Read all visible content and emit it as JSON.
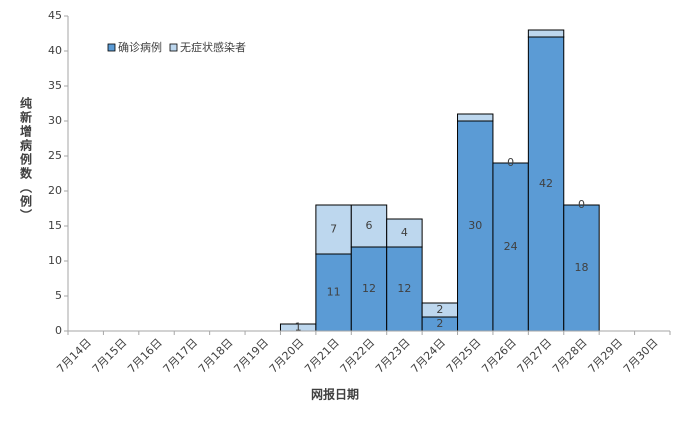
{
  "chart_data": {
    "type": "stacked_bar",
    "categories": [
      "7月14日",
      "7月15日",
      "7月16日",
      "7月17日",
      "7月18日",
      "7月19日",
      "7月20日",
      "7月21日",
      "7月22日",
      "7月23日",
      "7月24日",
      "7月25日",
      "7月26日",
      "7月27日",
      "7月28日",
      "7月29日",
      "7月30日"
    ],
    "series": [
      {
        "name": "确诊病例",
        "color": "#5b9bd5",
        "values": [
          0,
          0,
          0,
          0,
          0,
          0,
          0,
          11,
          12,
          12,
          2,
          30,
          24,
          42,
          18,
          0,
          0
        ],
        "value_labels": [
          null,
          null,
          null,
          null,
          null,
          null,
          null,
          "11",
          "12",
          "12",
          "2",
          "30",
          "24",
          "42",
          "18",
          null,
          null
        ]
      },
      {
        "name": "无症状感染者",
        "color": "#bdd7ee",
        "values": [
          0,
          0,
          0,
          0,
          0,
          0,
          1,
          7,
          6,
          4,
          2,
          1,
          0,
          1,
          0,
          0,
          0
        ],
        "value_labels": [
          null,
          null,
          null,
          null,
          null,
          null,
          "1",
          "7",
          "6",
          "4",
          "2",
          null,
          "0",
          null,
          "0",
          null,
          null
        ]
      }
    ],
    "xlabel": "网报日期",
    "ylabel": "纯新增病例数（例）",
    "ylim": [
      0,
      45
    ],
    "yticks": [
      0,
      5,
      10,
      15,
      20,
      25,
      30,
      35,
      40,
      45
    ],
    "grid": false,
    "legend": "upper left"
  }
}
